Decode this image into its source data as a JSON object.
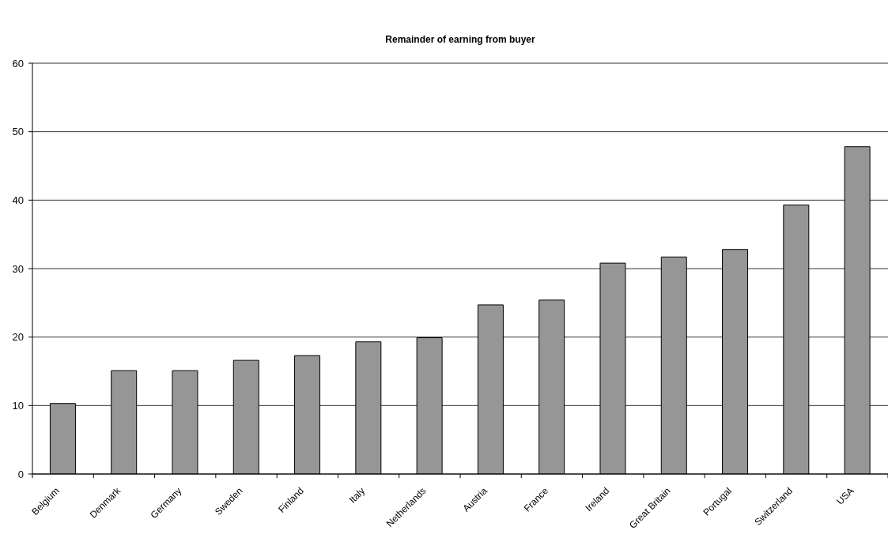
{
  "chart_data": {
    "type": "bar",
    "title": "Remainder of earning from buyer",
    "categories": [
      "Belgium",
      "Denmark",
      "Germany",
      "Sweden",
      "Finland",
      "Italy",
      "Netherlands",
      "Austria",
      "France",
      "Ireland",
      "Great Britain",
      "Portugal",
      "Switzerland",
      "USA"
    ],
    "values": [
      10.3,
      15.1,
      15.1,
      16.6,
      17.3,
      19.3,
      19.9,
      24.7,
      25.4,
      30.8,
      31.7,
      32.8,
      39.3,
      47.8
    ],
    "color": "#969696",
    "ylim": [
      0,
      60
    ],
    "yticks": [
      0,
      10,
      20,
      30,
      40,
      50,
      60
    ],
    "grid": "y"
  }
}
